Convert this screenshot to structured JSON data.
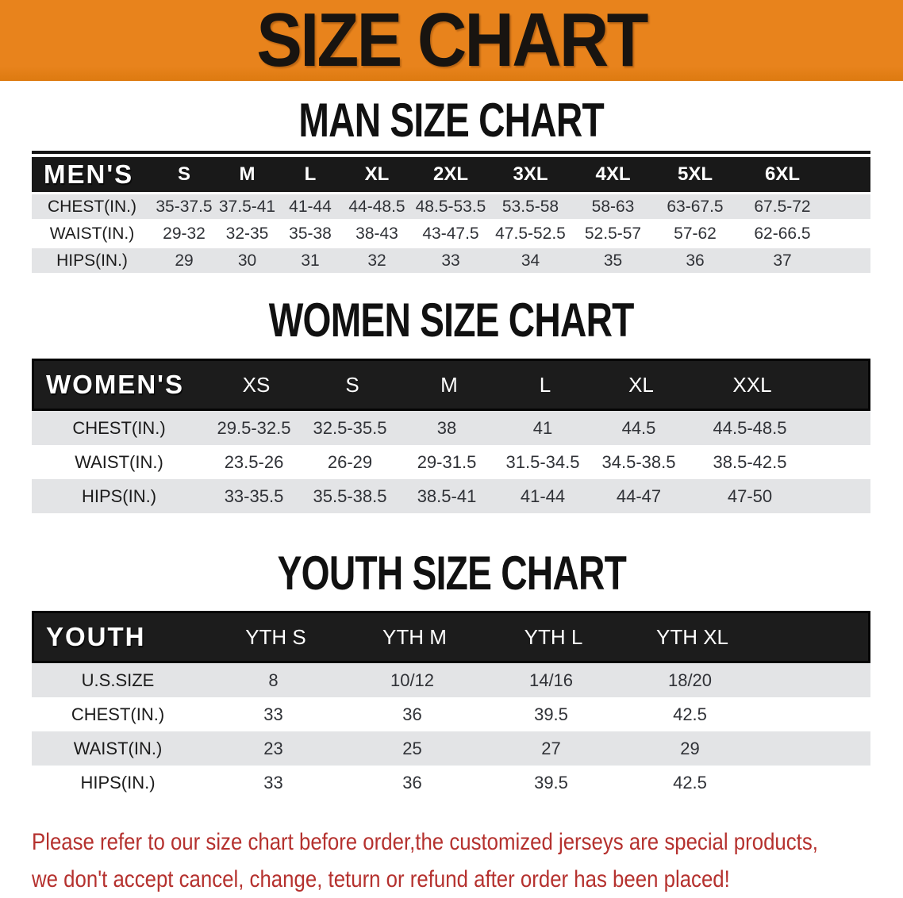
{
  "banner": {
    "title": "SIZE CHART"
  },
  "colors": {
    "banner-bg": "#e8831c",
    "banner-text": "#181410",
    "header-bg": "#191919",
    "header-text": "#ffffff",
    "stripe": "#e3e4e6",
    "cell-text": "#303237",
    "label-text": "#1c1c1c",
    "disclaimer": "#b5312e"
  },
  "sections": [
    {
      "title": "MAN SIZE CHART",
      "header_label": "MEN'S",
      "columns": [
        "S",
        "M",
        "L",
        "XL",
        "2XL",
        "3XL",
        "4XL",
        "5XL",
        "6XL"
      ],
      "rows": [
        {
          "label": "CHEST(IN.)",
          "values": [
            "35-37.5",
            "37.5-41",
            "41-44",
            "44-48.5",
            "48.5-53.5",
            "53.5-58",
            "58-63",
            "63-67.5",
            "67.5-72"
          ]
        },
        {
          "label": "WAIST(IN.)",
          "values": [
            "29-32",
            "32-35",
            "35-38",
            "38-43",
            "43-47.5",
            "47.5-52.5",
            "52.5-57",
            "57-62",
            "62-66.5"
          ]
        },
        {
          "label": "HIPS(IN.)",
          "values": [
            "29",
            "30",
            "31",
            "32",
            "33",
            "34",
            "35",
            "36",
            "37"
          ]
        }
      ]
    },
    {
      "title": "WOMEN SIZE CHART",
      "header_label": "WOMEN'S",
      "columns": [
        "XS",
        "S",
        "M",
        "L",
        "XL",
        "XXL"
      ],
      "rows": [
        {
          "label": "CHEST(IN.)",
          "values": [
            "29.5-32.5",
            "32.5-35.5",
            "38",
            "41",
            "44.5",
            "44.5-48.5"
          ]
        },
        {
          "label": "WAIST(IN.)",
          "values": [
            "23.5-26",
            "26-29",
            "29-31.5",
            "31.5-34.5",
            "34.5-38.5",
            "38.5-42.5"
          ]
        },
        {
          "label": "HIPS(IN.)",
          "values": [
            "33-35.5",
            "35.5-38.5",
            "38.5-41",
            "41-44",
            "44-47",
            "47-50"
          ]
        }
      ]
    },
    {
      "title": "YOUTH SIZE CHART",
      "header_label": "YOUTH",
      "columns": [
        "YTH S",
        "YTH M",
        "YTH L",
        "YTH XL"
      ],
      "rows": [
        {
          "label": "U.S.SIZE",
          "values": [
            "8",
            "10/12",
            "14/16",
            "18/20"
          ]
        },
        {
          "label": "CHEST(IN.)",
          "values": [
            "33",
            "36",
            "39.5",
            "42.5"
          ]
        },
        {
          "label": "WAIST(IN.)",
          "values": [
            "23",
            "25",
            "27",
            "29"
          ]
        },
        {
          "label": "HIPS(IN.)",
          "values": [
            "33",
            "36",
            "39.5",
            "42.5"
          ]
        }
      ]
    }
  ],
  "disclaimer": {
    "line1": "Please refer to our size chart before order,the customized jerseys are special products,",
    "line2": "we don't accept cancel, change, teturn or refund after order has been placed!"
  }
}
